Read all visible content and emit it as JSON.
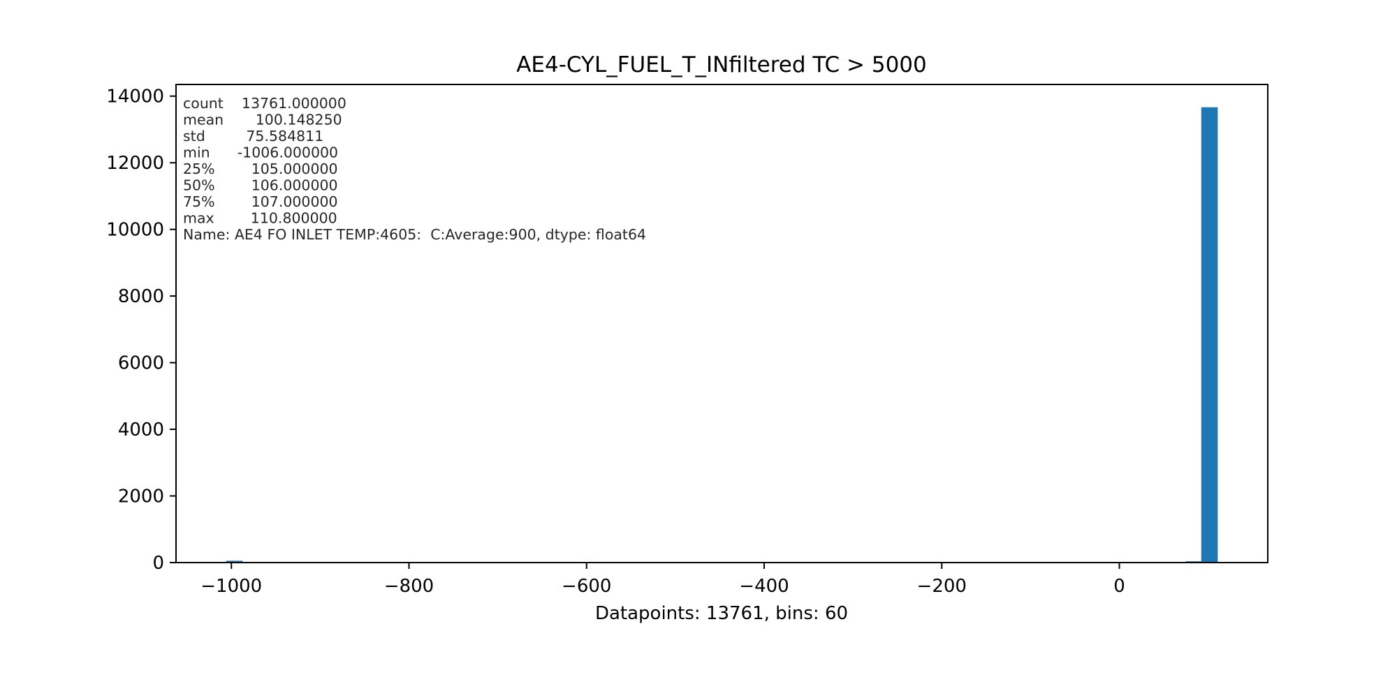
{
  "chart_data": {
    "type": "bar",
    "subtype": "histogram",
    "title": "AE4-CYL_FUEL_T_INfiltered TC > 5000",
    "xlabel": "Datapoints: 13761, bins: 60",
    "ylabel": "",
    "xlim": [
      -1062.34,
      167.14
    ],
    "ylim": [
      0,
      14350
    ],
    "x_ticks": [
      -1000,
      -800,
      -600,
      -400,
      -200,
      0
    ],
    "x_tick_labels": [
      "−1000",
      "−800",
      "−600",
      "−400",
      "−200",
      "0"
    ],
    "y_ticks": [
      0,
      2000,
      4000,
      6000,
      8000,
      10000,
      12000,
      14000
    ],
    "y_tick_labels": [
      "0",
      "2000",
      "4000",
      "6000",
      "8000",
      "10000",
      "12000",
      "14000"
    ],
    "bar_color": "#1f77b4",
    "grid": false,
    "bin_width": 18.6133,
    "bins": [
      {
        "x0": -1006.0,
        "count": 55
      },
      {
        "x0": 74.67,
        "count": 40
      },
      {
        "x0": 92.19,
        "count": 13666
      }
    ],
    "stats_text": [
      "count    13761.000000",
      "mean       100.148250",
      "std         75.584811",
      "min      -1006.000000",
      "25%        105.000000",
      "50%        106.000000",
      "75%        107.000000",
      "max        110.800000",
      "Name: AE4 FO INLET TEMP:4605:  C:Average:900, dtype: float64"
    ]
  }
}
